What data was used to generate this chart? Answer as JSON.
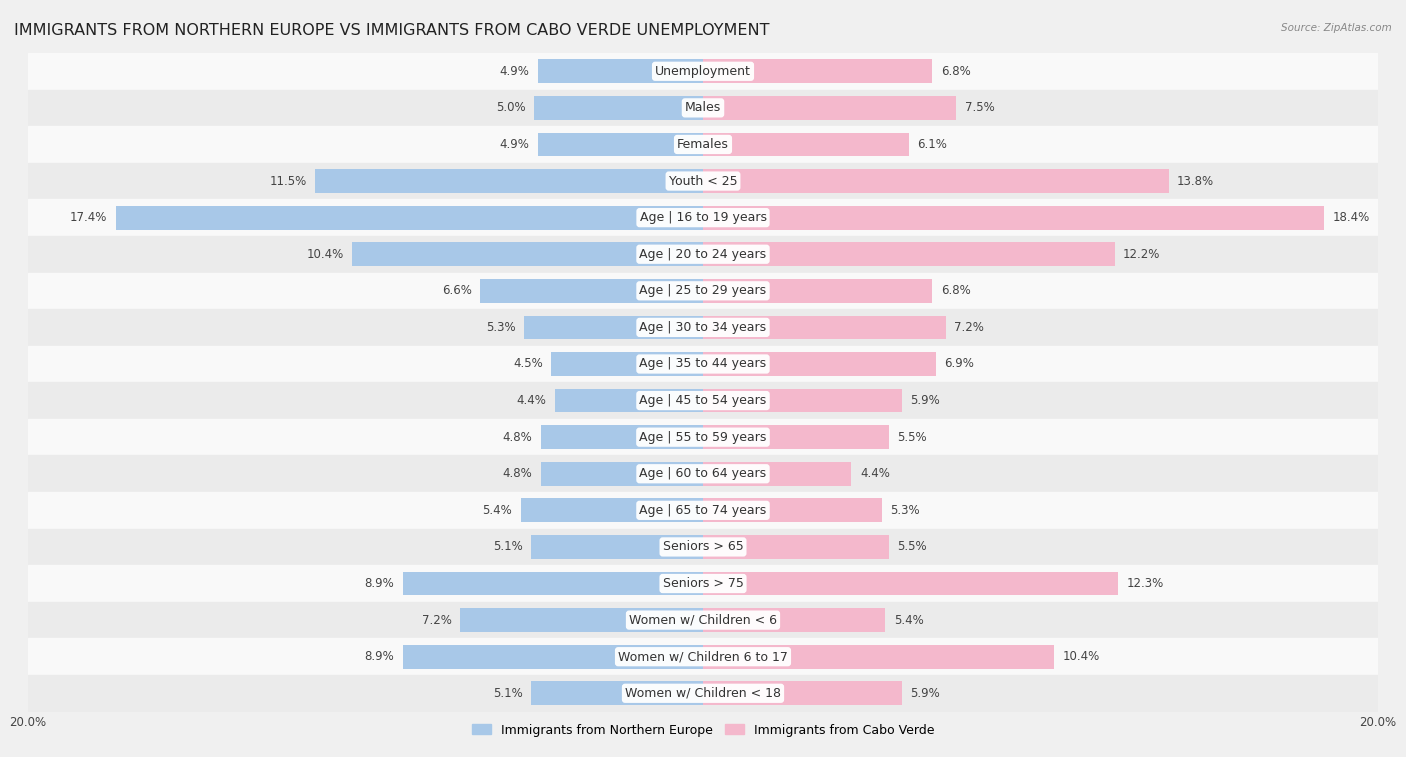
{
  "title": "IMMIGRANTS FROM NORTHERN EUROPE VS IMMIGRANTS FROM CABO VERDE UNEMPLOYMENT",
  "source": "Source: ZipAtlas.com",
  "categories": [
    "Unemployment",
    "Males",
    "Females",
    "Youth < 25",
    "Age | 16 to 19 years",
    "Age | 20 to 24 years",
    "Age | 25 to 29 years",
    "Age | 30 to 34 years",
    "Age | 35 to 44 years",
    "Age | 45 to 54 years",
    "Age | 55 to 59 years",
    "Age | 60 to 64 years",
    "Age | 65 to 74 years",
    "Seniors > 65",
    "Seniors > 75",
    "Women w/ Children < 6",
    "Women w/ Children 6 to 17",
    "Women w/ Children < 18"
  ],
  "left_values": [
    4.9,
    5.0,
    4.9,
    11.5,
    17.4,
    10.4,
    6.6,
    5.3,
    4.5,
    4.4,
    4.8,
    4.8,
    5.4,
    5.1,
    8.9,
    7.2,
    8.9,
    5.1
  ],
  "right_values": [
    6.8,
    7.5,
    6.1,
    13.8,
    18.4,
    12.2,
    6.8,
    7.2,
    6.9,
    5.9,
    5.5,
    4.4,
    5.3,
    5.5,
    12.3,
    5.4,
    10.4,
    5.9
  ],
  "left_color": "#a8c8e8",
  "right_color": "#f4b8cc",
  "axis_max": 20.0,
  "legend_left": "Immigrants from Northern Europe",
  "legend_right": "Immigrants from Cabo Verde",
  "background_color": "#f0f0f0",
  "row_bg_light": "#f9f9f9",
  "row_bg_dark": "#ebebeb",
  "title_fontsize": 11.5,
  "label_fontsize": 9,
  "value_fontsize": 8.5,
  "axis_label_fontsize": 8.5
}
